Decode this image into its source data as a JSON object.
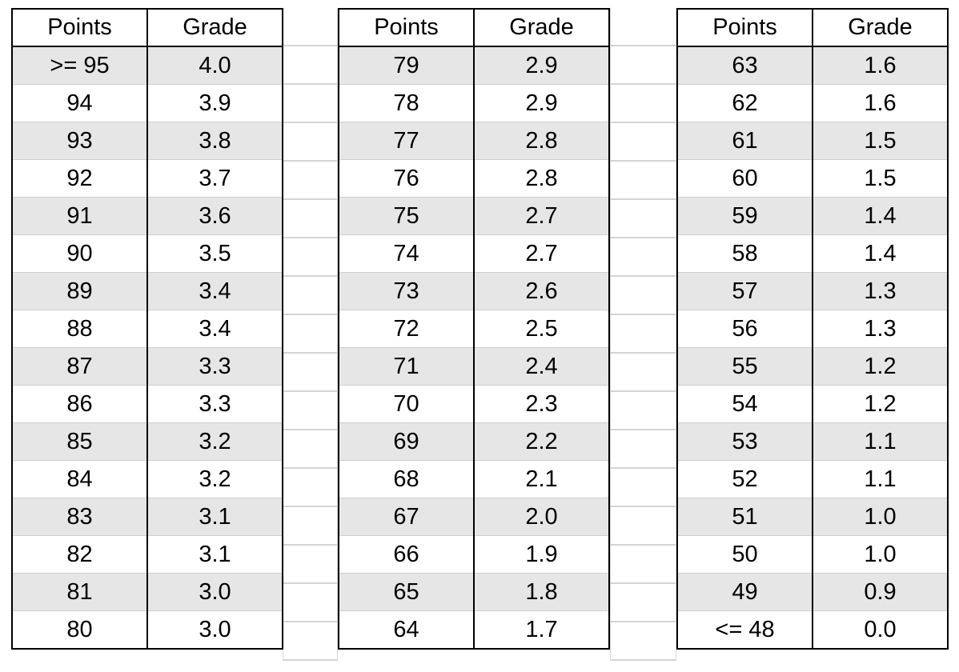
{
  "headers": {
    "points": "Points",
    "grade": "Grade"
  },
  "columns": [
    {
      "rows": [
        {
          "points": ">= 95",
          "grade": "4.0"
        },
        {
          "points": "94",
          "grade": "3.9"
        },
        {
          "points": "93",
          "grade": "3.8"
        },
        {
          "points": "92",
          "grade": "3.7"
        },
        {
          "points": "91",
          "grade": "3.6"
        },
        {
          "points": "90",
          "grade": "3.5"
        },
        {
          "points": "89",
          "grade": "3.4"
        },
        {
          "points": "88",
          "grade": "3.4"
        },
        {
          "points": "87",
          "grade": "3.3"
        },
        {
          "points": "86",
          "grade": "3.3"
        },
        {
          "points": "85",
          "grade": "3.2"
        },
        {
          "points": "84",
          "grade": "3.2"
        },
        {
          "points": "83",
          "grade": "3.1"
        },
        {
          "points": "82",
          "grade": "3.1"
        },
        {
          "points": "81",
          "grade": "3.0"
        },
        {
          "points": "80",
          "grade": "3.0"
        }
      ]
    },
    {
      "rows": [
        {
          "points": "79",
          "grade": "2.9"
        },
        {
          "points": "78",
          "grade": "2.9"
        },
        {
          "points": "77",
          "grade": "2.8"
        },
        {
          "points": "76",
          "grade": "2.8"
        },
        {
          "points": "75",
          "grade": "2.7"
        },
        {
          "points": "74",
          "grade": "2.7"
        },
        {
          "points": "73",
          "grade": "2.6"
        },
        {
          "points": "72",
          "grade": "2.5"
        },
        {
          "points": "71",
          "grade": "2.4"
        },
        {
          "points": "70",
          "grade": "2.3"
        },
        {
          "points": "69",
          "grade": "2.2"
        },
        {
          "points": "68",
          "grade": "2.1"
        },
        {
          "points": "67",
          "grade": "2.0"
        },
        {
          "points": "66",
          "grade": "1.9"
        },
        {
          "points": "65",
          "grade": "1.8"
        },
        {
          "points": "64",
          "grade": "1.7"
        }
      ]
    },
    {
      "rows": [
        {
          "points": "63",
          "grade": "1.6"
        },
        {
          "points": "62",
          "grade": "1.6"
        },
        {
          "points": "61",
          "grade": "1.5"
        },
        {
          "points": "60",
          "grade": "1.5"
        },
        {
          "points": "59",
          "grade": "1.4"
        },
        {
          "points": "58",
          "grade": "1.4"
        },
        {
          "points": "57",
          "grade": "1.3"
        },
        {
          "points": "56",
          "grade": "1.3"
        },
        {
          "points": "55",
          "grade": "1.2"
        },
        {
          "points": "54",
          "grade": "1.2"
        },
        {
          "points": "53",
          "grade": "1.1"
        },
        {
          "points": "52",
          "grade": "1.1"
        },
        {
          "points": "51",
          "grade": "1.0"
        },
        {
          "points": "50",
          "grade": "1.0"
        },
        {
          "points": "49",
          "grade": "0.9"
        },
        {
          "points": "<= 48",
          "grade": "0.0"
        }
      ]
    }
  ],
  "colors": {
    "band": "#e6e6e6",
    "border": "#000000",
    "gridline": "#d4d4d4"
  }
}
